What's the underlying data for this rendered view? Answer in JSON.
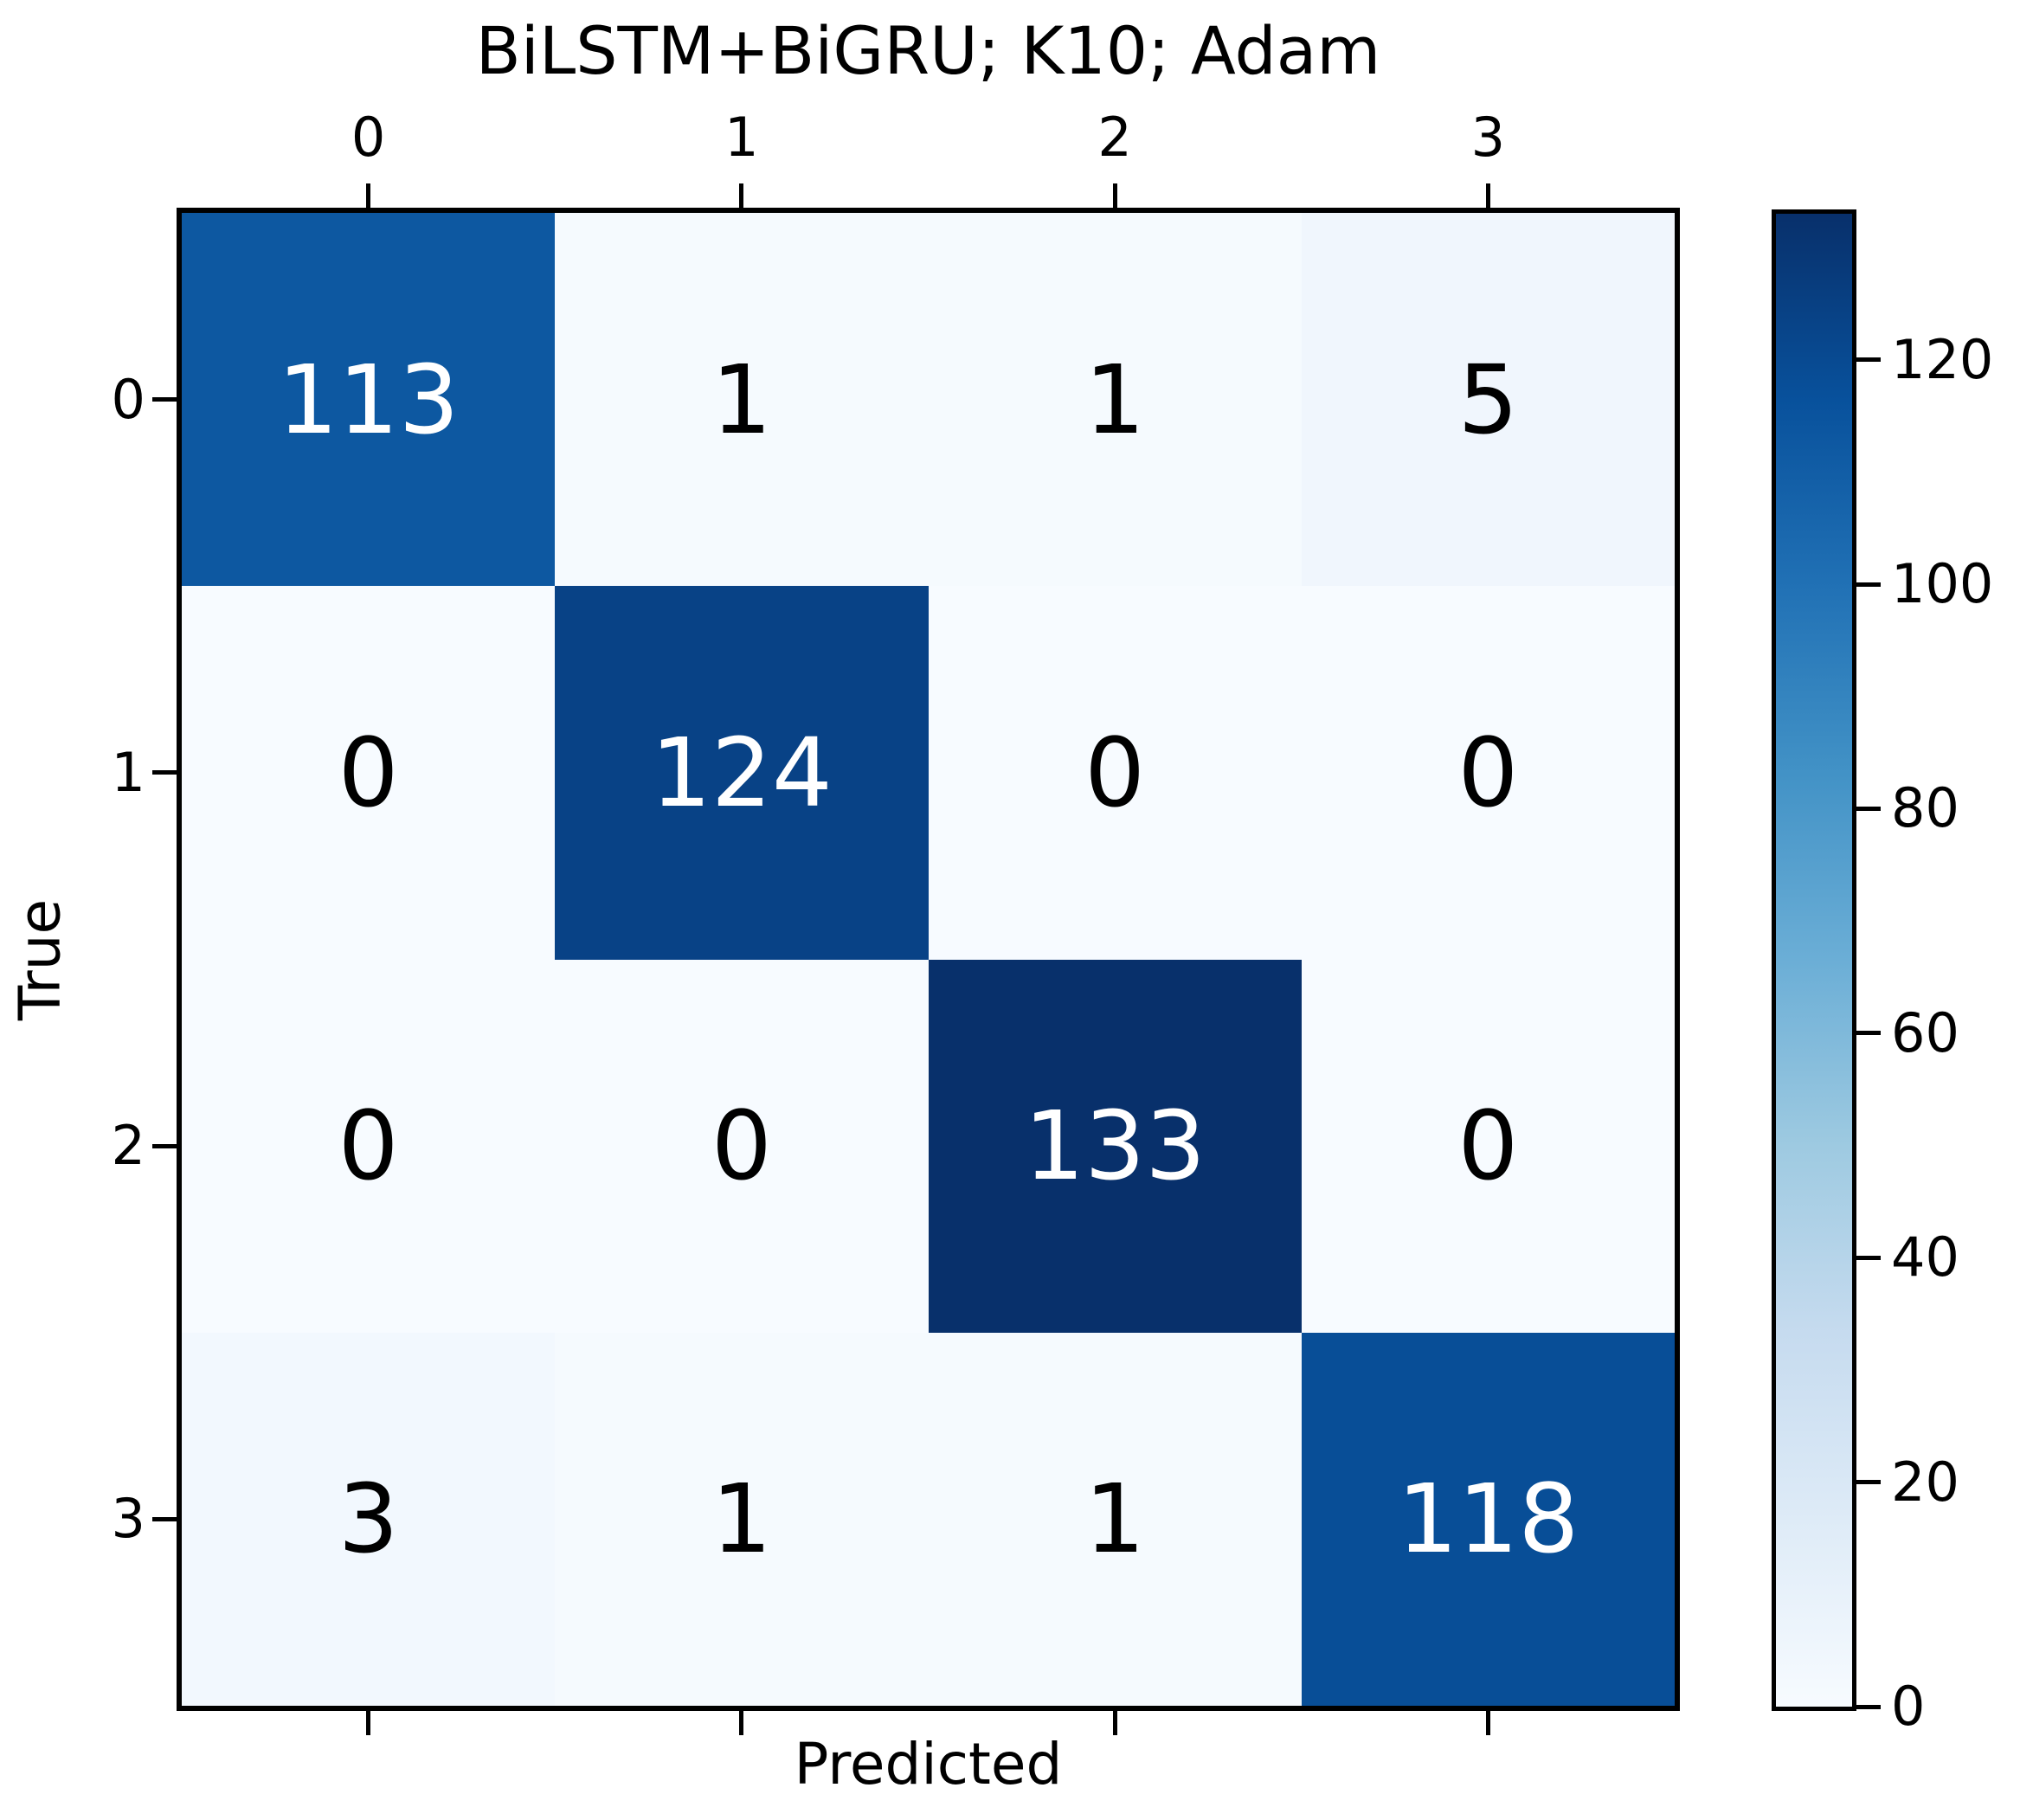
{
  "figure": {
    "background": "#ffffff",
    "frame_color": "#000000",
    "text_color": "#000000"
  },
  "chart_data": {
    "type": "heatmap",
    "subtype": "confusion-matrix",
    "title": "BiLSTM+BiGRU; K10; Adam",
    "xlabel": "Predicted",
    "ylabel": "True",
    "x_tick_labels": [
      "0",
      "1",
      "2",
      "3"
    ],
    "y_tick_labels": [
      "0",
      "1",
      "2",
      "3"
    ],
    "matrix": [
      [
        113,
        1,
        1,
        5
      ],
      [
        0,
        124,
        0,
        0
      ],
      [
        0,
        0,
        133,
        0
      ],
      [
        3,
        1,
        1,
        118
      ]
    ],
    "vmin": 0,
    "vmax": 133,
    "colormap": "Blues",
    "grid": false,
    "legend_position": "right-colorbar",
    "colorbar_ticks": [
      0,
      20,
      40,
      60,
      80,
      100,
      120
    ],
    "colorbar_gradient_top_to_bottom": [
      "#08306b",
      "#08519c",
      "#2171b5",
      "#4292c6",
      "#6baed6",
      "#9ecae1",
      "#c6dbef",
      "#deebf7",
      "#f7fbff"
    ],
    "cell_colors": [
      [
        "#0d58a1",
        "#f5fafe",
        "#f5fafe",
        "#f0f6fd"
      ],
      [
        "#f7fbff",
        "#084286",
        "#f7fbff",
        "#f7fbff"
      ],
      [
        "#f7fbff",
        "#f7fbff",
        "#08306b",
        "#f7fbff"
      ],
      [
        "#f2f8fe",
        "#f5fafe",
        "#f5fafe",
        "#084e97"
      ]
    ],
    "cell_text_colors": [
      [
        "#ffffff",
        "#000000",
        "#000000",
        "#000000"
      ],
      [
        "#000000",
        "#ffffff",
        "#000000",
        "#000000"
      ],
      [
        "#000000",
        "#000000",
        "#ffffff",
        "#000000"
      ],
      [
        "#000000",
        "#000000",
        "#000000",
        "#ffffff"
      ]
    ]
  }
}
